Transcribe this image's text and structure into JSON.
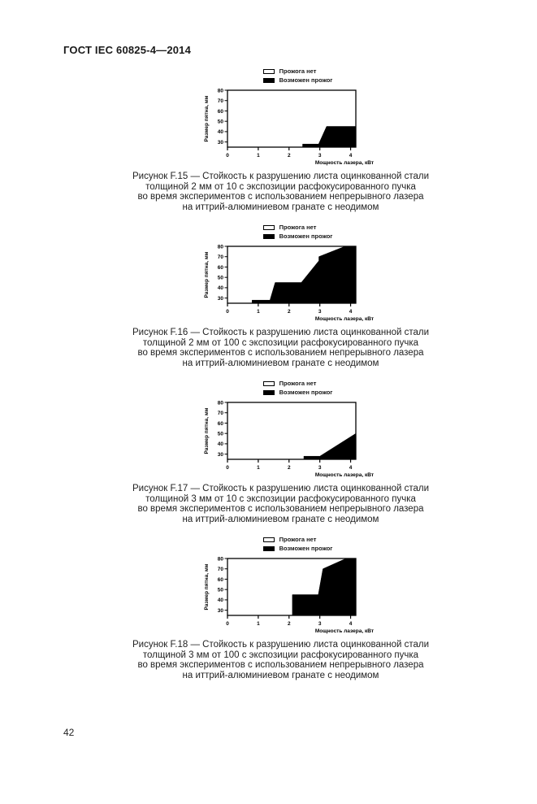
{
  "page": {
    "header": "ГОСТ IEC 60825-4—2014",
    "page_number": "42"
  },
  "legend": {
    "no_burn": "Прожога нет",
    "burn_possible": "Возможен прожог"
  },
  "figures": [
    {
      "id": "F.15",
      "caption_lines": [
        "Рисунок F.15 — Стойкость к разрушению листа оцинкованной стали",
        "толщиной 2 мм от 10 с экспозиции расфокусированного пучка",
        "во время экспериментов с использованием непрерывного лазера",
        "на иттрий-алюминиевом гранате с неодимом"
      ]
    },
    {
      "id": "F.16",
      "caption_lines": [
        "Рисунок F.16 — Стойкость к разрушению листа оцинкованной стали",
        "толщиной 2 мм от 100 с экспозиции расфокусированного пучка",
        "во время экспериментов с использованием непрерывного лазера",
        "на иттрий-алюминиевом гранате с неодимом"
      ]
    },
    {
      "id": "F.17",
      "caption_lines": [
        "Рисунок F.17 — Стойкость к разрушению листа оцинкованной стали",
        "толщиной 3 мм от 10 с экспозиции расфокусированного пучка",
        "во время экспериментов с использованием непрерывного лазера",
        "на иттрий-алюминиевом гранате с неодимом"
      ]
    },
    {
      "id": "F.18",
      "caption_lines": [
        "Рисунок F.18 — Стойкость к разрушению листа оцинкованной стали",
        "толщиной 3 мм от 100 с экспозиции расфокусированного пучка",
        "во время экспериментов с использованием непрерывного лазера",
        "на иттрий-алюминиевом гранате с неодимом"
      ]
    }
  ],
  "chart_data": [
    {
      "figure": "F.15",
      "type": "area",
      "title": "",
      "xlabel": "Мощность лазера, кВт",
      "ylabel": "Размер пятна, мм",
      "xlim": [
        0,
        4.17
      ],
      "ylim": [
        25,
        80
      ],
      "xticks": [
        0,
        1,
        2,
        3,
        4
      ],
      "yticks": [
        30,
        40,
        50,
        60,
        70,
        80
      ],
      "legend_entries": [
        "Прожога нет",
        "Возможен прожог"
      ],
      "fill_color": "#000000",
      "series": [
        {
          "name": "Возможен прожог",
          "boundary": [
            [
              2.44,
              25
            ],
            [
              2.44,
              28
            ],
            [
              2.96,
              28
            ],
            [
              3.22,
              45
            ],
            [
              4.17,
              45
            ],
            [
              4.17,
              25
            ]
          ]
        }
      ]
    },
    {
      "figure": "F.16",
      "type": "area",
      "title": "",
      "xlabel": "Мощность лазера, кВт",
      "ylabel": "Размер пятна, мм",
      "xlim": [
        0,
        4.17
      ],
      "ylim": [
        25,
        80
      ],
      "xticks": [
        0,
        1,
        2,
        3,
        4
      ],
      "yticks": [
        30,
        40,
        50,
        60,
        70,
        80
      ],
      "legend_entries": [
        "Прожога нет",
        "Возможен прожог"
      ],
      "fill_color": "#000000",
      "series": [
        {
          "name": "Возможен прожог",
          "boundary": [
            [
              0.8,
              25
            ],
            [
              0.8,
              28
            ],
            [
              1.38,
              28
            ],
            [
              1.55,
              45
            ],
            [
              2.4,
              45
            ],
            [
              2.97,
              66
            ],
            [
              2.97,
              70
            ],
            [
              3.82,
              80
            ],
            [
              4.17,
              80
            ],
            [
              4.17,
              25
            ]
          ]
        }
      ]
    },
    {
      "figure": "F.17",
      "type": "area",
      "title": "",
      "xlabel": "Мощность лазера, кВт",
      "ylabel": "Размер пятна, мм",
      "xlim": [
        0,
        4.17
      ],
      "ylim": [
        25,
        80
      ],
      "xticks": [
        0,
        1,
        2,
        3,
        4
      ],
      "yticks": [
        30,
        40,
        50,
        60,
        70,
        80
      ],
      "legend_entries": [
        "Прожога нет",
        "Возможен прожог"
      ],
      "fill_color": "#000000",
      "series": [
        {
          "name": "Возможен прожог",
          "boundary": [
            [
              2.48,
              25
            ],
            [
              2.48,
              28
            ],
            [
              3.0,
              28
            ],
            [
              4.17,
              50
            ],
            [
              4.17,
              25
            ]
          ]
        }
      ]
    },
    {
      "figure": "F.18",
      "type": "area",
      "title": "",
      "xlabel": "Мощность лазера, кВт",
      "ylabel": "Размер пятна, мм",
      "xlim": [
        0,
        4.17
      ],
      "ylim": [
        25,
        80
      ],
      "xticks": [
        0,
        1,
        2,
        3,
        4
      ],
      "yticks": [
        30,
        40,
        50,
        60,
        70,
        80
      ],
      "legend_entries": [
        "Прожога нет",
        "Возможен прожог"
      ],
      "fill_color": "#000000",
      "series": [
        {
          "name": "Возможен прожог",
          "boundary": [
            [
              2.11,
              25
            ],
            [
              2.11,
              45
            ],
            [
              2.95,
              45
            ],
            [
              3.1,
              70
            ],
            [
              3.85,
              80
            ],
            [
              4.17,
              80
            ],
            [
              4.17,
              25
            ]
          ]
        }
      ]
    }
  ]
}
